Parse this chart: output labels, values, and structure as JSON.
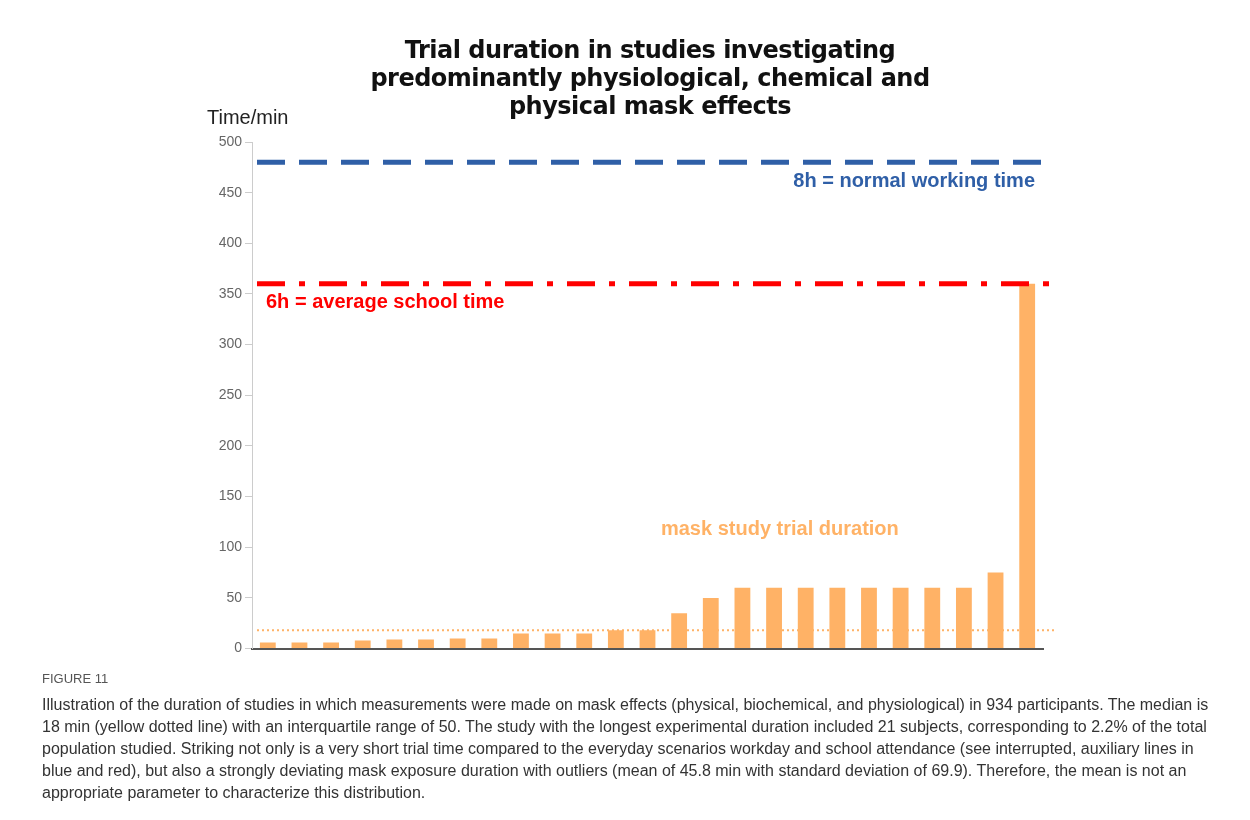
{
  "chart_data": {
    "type": "bar",
    "title": "Trial duration in studies investigating predominantly physiological, chemical and physical mask effects",
    "ylabel": "Time/min",
    "categories": [
      null,
      null,
      null,
      null,
      null,
      null,
      null,
      null,
      null,
      null,
      null,
      null,
      null,
      null,
      null,
      null,
      null,
      null,
      null,
      null,
      null,
      null,
      null,
      null,
      null
    ],
    "series": [
      {
        "name": "mask study trial duration",
        "color": "#ffb266",
        "values": [
          6,
          6,
          6,
          8,
          9,
          9,
          10,
          10,
          15,
          15,
          15,
          18,
          18,
          35,
          50,
          60,
          60,
          60,
          60,
          60,
          60,
          60,
          60,
          75,
          360
        ]
      }
    ],
    "ylim": [
      0,
      500
    ],
    "yticks": [
      0,
      50,
      100,
      150,
      200,
      250,
      300,
      350,
      400,
      450,
      500
    ],
    "grid": false,
    "legend": false,
    "tick_labels": "y",
    "ref_lines": [
      {
        "axis": "y",
        "value": 480,
        "label": "8h = normal working time",
        "color": "#2f5fa7",
        "line_style": "dashed"
      },
      {
        "axis": "y",
        "value": 360,
        "label": "6h = average school time",
        "color": "#ff0000",
        "line_style": "dashdot"
      },
      {
        "axis": "y",
        "value": 18,
        "color": "#ffb266",
        "line_style": "dotted"
      }
    ],
    "annotations": [
      "FIGURE 11",
      "Illustration of the duration of studies in which measurements were made on mask effects (physical, biochemical, and physiological) in 934 participants. The median is 18 min (yellow dotted line) with an interquartile range of 50. The study with the longest experimental duration included 21 subjects, corresponding to 2.2% of the total population studied. Striking not only is a very short trial time compared to the everyday scenarios workday and school attendance (see interrupted, auxiliary lines in blue and red), but also a strongly deviating mask exposure duration with outliers (mean of 45.8 min with standard deviation of 69.9). Therefore, the mean is not an appropriate parameter to characterize this distribution."
    ]
  }
}
